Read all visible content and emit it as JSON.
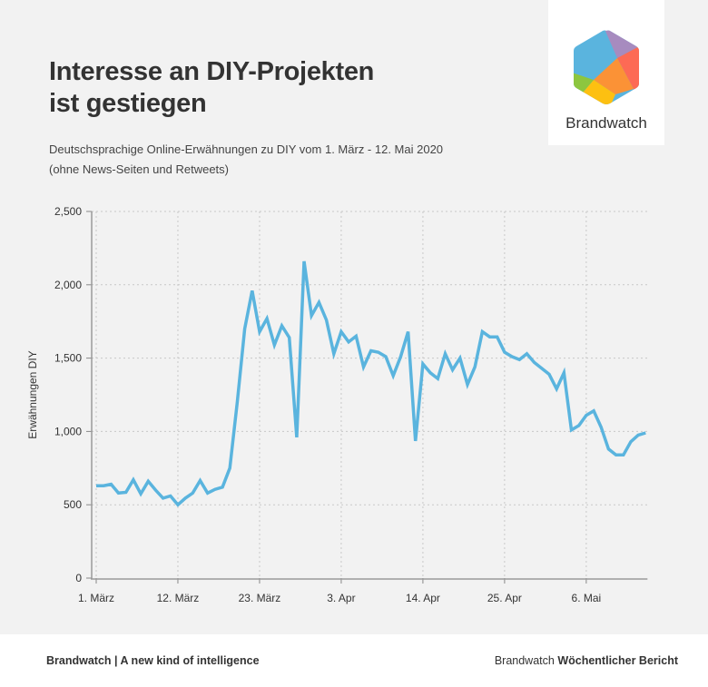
{
  "header": {
    "title_line1": "Interesse an DIY-Projekten",
    "title_line2": "ist gestiegen",
    "subtitle_line1": "Deutschsprachige Online-Erwähnungen zu DIY vom 1. März - 12. Mai 2020",
    "subtitle_line2": "(ohne News-Seiten und Retweets)"
  },
  "logo": {
    "icon": "brandwatch-hexagon-logo",
    "text": "Brandwatch",
    "colors": {
      "blue": "#5ab4de",
      "purple": "#a78bbf",
      "red": "#fd6a55",
      "orange": "#fb9236",
      "yellow": "#fdc011",
      "green": "#8dc63f"
    }
  },
  "footer": {
    "left": "Brandwatch | A new kind of intelligence",
    "right_regular": "Brandwatch",
    "right_bold": "Wöchentlicher Bericht"
  },
  "chart_data": {
    "type": "line",
    "title": "Interesse an DIY-Projekten ist gestiegen",
    "xlabel": "",
    "ylabel": "Erwähnungen DIY",
    "ylim": [
      0,
      2500
    ],
    "yticks": [
      0,
      500,
      1000,
      1500,
      2000,
      2500
    ],
    "ytick_labels": [
      "0",
      "500",
      "1,000",
      "1,500",
      "2,000",
      "2,500"
    ],
    "x_tick_days": [
      0,
      11,
      22,
      33,
      44,
      55,
      66
    ],
    "x_tick_labels": [
      "1. März",
      "12. März",
      "23. März",
      "3. Apr",
      "14. Apr",
      "25. Apr",
      "6. Mai"
    ],
    "grid": true,
    "line_color": "#5ab4de",
    "series": [
      {
        "name": "Erwähnungen DIY",
        "values": [
          630,
          630,
          640,
          580,
          585,
          670,
          575,
          660,
          600,
          545,
          560,
          500,
          545,
          580,
          665,
          580,
          605,
          620,
          750,
          1200,
          1700,
          1960,
          1680,
          1770,
          1590,
          1720,
          1640,
          960,
          2160,
          1790,
          1880,
          1760,
          1530,
          1680,
          1610,
          1650,
          1440,
          1550,
          1540,
          1510,
          1380,
          1510,
          1680,
          935,
          1460,
          1400,
          1360,
          1530,
          1420,
          1500,
          1320,
          1440,
          1680,
          1645,
          1645,
          1540,
          1510,
          1490,
          1530,
          1470,
          1430,
          1390,
          1290,
          1400,
          1010,
          1040,
          1110,
          1140,
          1030,
          880,
          840,
          840,
          930,
          975,
          990
        ]
      }
    ]
  }
}
